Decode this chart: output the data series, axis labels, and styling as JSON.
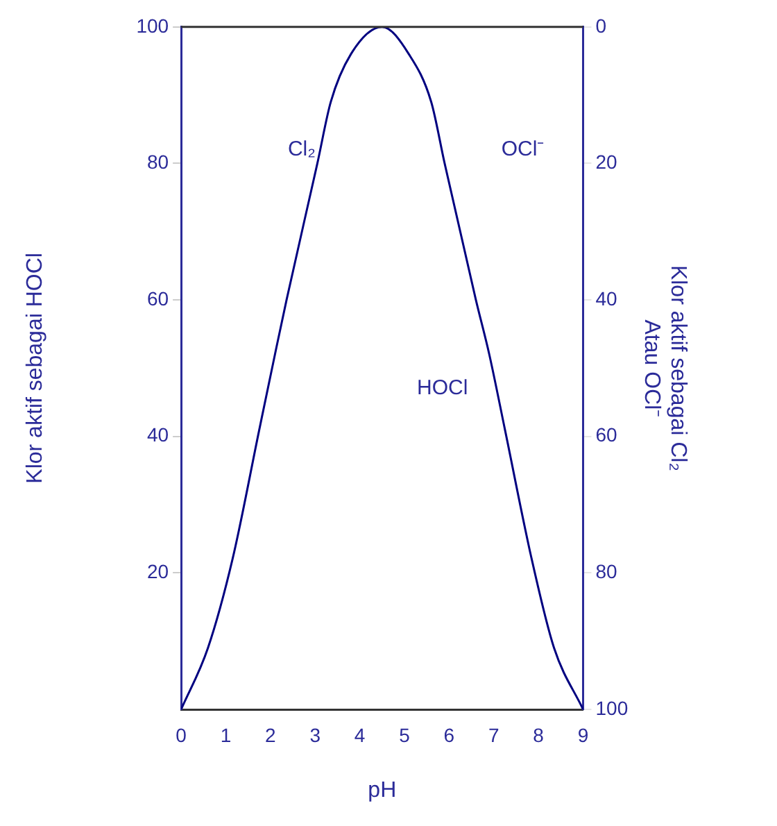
{
  "chart_data": {
    "type": "line",
    "xlabel": "pH",
    "ylabel": "Klor aktif sebagai HOCl",
    "y2label": "Klor aktif sebagai Cl₂\nAtau OCl⁻",
    "series": [
      {
        "color": "#000080",
        "x": [
          0,
          0.6,
          1.15,
          1.75,
          2.1,
          2.36,
          3.05,
          3.35,
          3.8,
          4.5,
          5.1,
          5.6,
          5.9,
          6.6,
          6.9,
          7.25,
          7.85,
          8.35,
          9
        ],
        "values": [
          0,
          9,
          22,
          41,
          52,
          60,
          80,
          89,
          96,
          100,
          96,
          89,
          80,
          60,
          52,
          41,
          22,
          9,
          0
        ]
      }
    ],
    "xlim": [
      0,
      9
    ],
    "xticks": [
      0,
      1,
      2,
      3,
      4,
      5,
      6,
      7,
      8,
      9
    ],
    "ylim": [
      0,
      100
    ],
    "yticks": [
      20,
      40,
      60,
      80,
      100
    ],
    "y2lim": [
      100,
      0
    ],
    "y2ticks": [
      0,
      20,
      40,
      60,
      80,
      100
    ],
    "annotations": [
      "Cl₂",
      "OCl⁻",
      "HOCl"
    ],
    "grid": false,
    "legend": false,
    "marker": "none",
    "line_style": "solid"
  }
}
